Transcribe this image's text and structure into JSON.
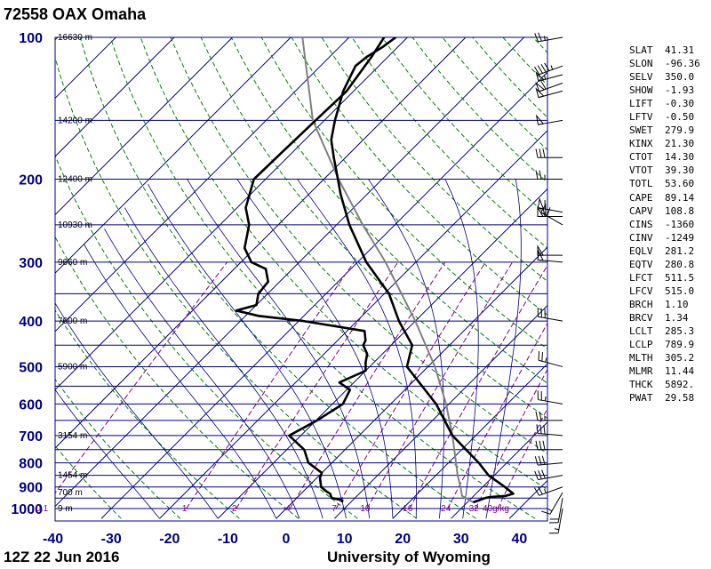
{
  "title": "72558 OAX Omaha",
  "footer": {
    "time": "12Z 22 Jun 2016",
    "source": "University of Wyoming"
  },
  "colors": {
    "isobar": "#000080",
    "isotherm": "#000080",
    "dry_adiabat": "#008000",
    "moist_adiabat": "#000080",
    "mixing_ratio": "#800080",
    "profile": "#000000",
    "parcel": "#808080"
  },
  "chart_data": {
    "type": "skew-t",
    "pressure_levels": [
      {
        "p": 100,
        "label": "100"
      },
      {
        "p": 150,
        "label": ""
      },
      {
        "p": 200,
        "label": "200"
      },
      {
        "p": 250,
        "label": ""
      },
      {
        "p": 300,
        "label": "300"
      },
      {
        "p": 350,
        "label": ""
      },
      {
        "p": 400,
        "label": "400"
      },
      {
        "p": 450,
        "label": ""
      },
      {
        "p": 500,
        "label": "500"
      },
      {
        "p": 550,
        "label": ""
      },
      {
        "p": 600,
        "label": "600"
      },
      {
        "p": 650,
        "label": ""
      },
      {
        "p": 700,
        "label": "700"
      },
      {
        "p": 750,
        "label": ""
      },
      {
        "p": 800,
        "label": "800"
      },
      {
        "p": 850,
        "label": ""
      },
      {
        "p": 900,
        "label": "900"
      },
      {
        "p": 950,
        "label": ""
      },
      {
        "p": 1000,
        "label": "1000"
      }
    ],
    "xlim": [
      -40,
      45
    ],
    "plim": [
      100,
      1000
    ],
    "temperature_ticks": [
      -40,
      -30,
      -20,
      -10,
      0,
      10,
      20,
      30,
      40
    ],
    "temperature_tick_labels": [
      "-40",
      "-30",
      "-20",
      "-10",
      "0",
      "10",
      "20",
      "30",
      "40"
    ],
    "heights": [
      {
        "p": 100,
        "label": "16630 m"
      },
      {
        "p": 150,
        "label": "14200 m"
      },
      {
        "p": 200,
        "label": "12400 m"
      },
      {
        "p": 250,
        "label": "10930 m"
      },
      {
        "p": 300,
        "label": "9660 m"
      },
      {
        "p": 400,
        "label": "7600 m"
      },
      {
        "p": 500,
        "label": "5900 m"
      },
      {
        "p": 700,
        "label": "3154 m"
      },
      {
        "p": 850,
        "label": "1454 m"
      },
      {
        "p": 925,
        "label": "700 m"
      },
      {
        "p": 1000,
        "label": "9 m"
      }
    ],
    "mixing_ratio_labels": [
      {
        "w": 0.1,
        "label": "0.1"
      },
      {
        "w": 1,
        "label": "1"
      },
      {
        "w": 2,
        "label": "2"
      },
      {
        "w": 4,
        "label": "4"
      },
      {
        "w": 7,
        "label": "7"
      },
      {
        "w": 10,
        "label": "10"
      },
      {
        "w": 16,
        "label": "16"
      },
      {
        "w": 24,
        "label": "24"
      },
      {
        "w": 32,
        "label": "32"
      },
      {
        "w": 40,
        "label": "40g/kg"
      }
    ],
    "temperature_profile": [
      [
        970,
        31
      ],
      [
        960,
        31.7
      ],
      [
        950,
        32.3
      ],
      [
        945,
        33
      ],
      [
        940,
        35.5
      ],
      [
        930,
        36.4
      ],
      [
        900,
        33.8
      ],
      [
        850,
        29
      ],
      [
        800,
        25.2
      ],
      [
        700,
        16
      ],
      [
        600,
        7.8
      ],
      [
        500,
        -3.6
      ],
      [
        450,
        -6.4
      ],
      [
        400,
        -12.8
      ],
      [
        350,
        -19.2
      ],
      [
        300,
        -28.5
      ],
      [
        250,
        -37.8
      ],
      [
        215,
        -44.6
      ],
      [
        200,
        -47.6
      ],
      [
        180,
        -52
      ],
      [
        165,
        -55.5
      ],
      [
        150,
        -58.2
      ],
      [
        130,
        -61.8
      ],
      [
        115,
        -64
      ],
      [
        110,
        -63.6
      ],
      [
        105,
        -62.6
      ],
      [
        100,
        -62
      ]
    ],
    "dewpoint_profile": [
      [
        970,
        8.5
      ],
      [
        960,
        8.2
      ],
      [
        950,
        6
      ],
      [
        940,
        5.5
      ],
      [
        930,
        5
      ],
      [
        920,
        4
      ],
      [
        900,
        2.3
      ],
      [
        860,
        0.5
      ],
      [
        840,
        0
      ],
      [
        800,
        -4
      ],
      [
        750,
        -7
      ],
      [
        700,
        -12
      ],
      [
        650,
        -9.8
      ],
      [
        600,
        -8.2
      ],
      [
        560,
        -9.4
      ],
      [
        540,
        -12.5
      ],
      [
        510,
        -10
      ],
      [
        490,
        -11.4
      ],
      [
        470,
        -12.6
      ],
      [
        450,
        -14.8
      ],
      [
        440,
        -15.2
      ],
      [
        420,
        -17
      ],
      [
        400,
        -29.2
      ],
      [
        390,
        -37.8
      ],
      [
        380,
        -42.5
      ],
      [
        370,
        -40
      ],
      [
        350,
        -41.6
      ],
      [
        330,
        -42
      ],
      [
        310,
        -44.6
      ],
      [
        300,
        -48.2
      ],
      [
        280,
        -51.8
      ],
      [
        250,
        -55
      ],
      [
        230,
        -58.5
      ],
      [
        200,
        -62
      ],
      [
        175,
        -61.8
      ],
      [
        150,
        -61.5
      ],
      [
        130,
        -61.2
      ],
      [
        110,
        -62.8
      ],
      [
        100,
        -64
      ]
    ],
    "parcel_profile": [
      [
        970,
        31
      ],
      [
        940,
        28
      ],
      [
        900,
        26.2
      ],
      [
        850,
        23.7
      ],
      [
        800,
        21.3
      ],
      [
        700,
        16
      ],
      [
        600,
        9.5
      ],
      [
        500,
        1.2
      ],
      [
        400,
        -10
      ],
      [
        300,
        -25.2
      ],
      [
        250,
        -35.5
      ],
      [
        200,
        -47.5
      ],
      [
        150,
        -62
      ],
      [
        100,
        -78
      ]
    ],
    "wind_barbs": [
      {
        "p": 100,
        "dir": 260,
        "spd": 25
      },
      {
        "p": 115,
        "dir": 250,
        "spd": 45
      },
      {
        "p": 120,
        "dir": 255,
        "spd": 55
      },
      {
        "p": 125,
        "dir": 250,
        "spd": 60
      },
      {
        "p": 130,
        "dir": 255,
        "spd": 50
      },
      {
        "p": 150,
        "dir": 260,
        "spd": 50
      },
      {
        "p": 180,
        "dir": 270,
        "spd": 30
      },
      {
        "p": 200,
        "dir": 270,
        "spd": 25
      },
      {
        "p": 235,
        "dir": 280,
        "spd": 60
      },
      {
        "p": 240,
        "dir": 270,
        "spd": 60
      },
      {
        "p": 250,
        "dir": 300,
        "spd": 60
      },
      {
        "p": 290,
        "dir": 270,
        "spd": 50
      },
      {
        "p": 300,
        "dir": 275,
        "spd": 50
      },
      {
        "p": 400,
        "dir": 280,
        "spd": 30
      },
      {
        "p": 500,
        "dir": 285,
        "spd": 25
      },
      {
        "p": 600,
        "dir": 280,
        "spd": 25
      },
      {
        "p": 650,
        "dir": 270,
        "spd": 25
      },
      {
        "p": 700,
        "dir": 275,
        "spd": 30
      },
      {
        "p": 750,
        "dir": 270,
        "spd": 30
      },
      {
        "p": 800,
        "dir": 265,
        "spd": 30
      },
      {
        "p": 850,
        "dir": 260,
        "spd": 30
      },
      {
        "p": 900,
        "dir": 250,
        "spd": 25
      },
      {
        "p": 925,
        "dir": 210,
        "spd": 15
      },
      {
        "p": 950,
        "dir": 190,
        "spd": 20
      },
      {
        "p": 1000,
        "dir": 190,
        "spd": 15
      }
    ]
  },
  "indices": [
    {
      "label": "SLAT",
      "value": "41.31"
    },
    {
      "label": "SLON",
      "value": "-96.36"
    },
    {
      "label": "SELV",
      "value": "350.0"
    },
    {
      "label": "SHOW",
      "value": "-1.93"
    },
    {
      "label": "LIFT",
      "value": "-0.30"
    },
    {
      "label": "LFTV",
      "value": "-0.50"
    },
    {
      "label": "SWET",
      "value": "279.9"
    },
    {
      "label": "KINX",
      "value": "21.30"
    },
    {
      "label": "CTOT",
      "value": "14.30"
    },
    {
      "label": "VTOT",
      "value": "39.30"
    },
    {
      "label": "TOTL",
      "value": "53.60"
    },
    {
      "label": "CAPE",
      "value": "89.14"
    },
    {
      "label": "CAPV",
      "value": "108.8"
    },
    {
      "label": "CINS",
      "value": "-1360"
    },
    {
      "label": "CINV",
      "value": "-1249"
    },
    {
      "label": "EQLV",
      "value": "281.2"
    },
    {
      "label": "EQTV",
      "value": "280.8"
    },
    {
      "label": "LFCT",
      "value": "511.5"
    },
    {
      "label": "LFCV",
      "value": "515.0"
    },
    {
      "label": "BRCH",
      "value": "1.10"
    },
    {
      "label": "BRCV",
      "value": "1.34"
    },
    {
      "label": "LCLT",
      "value": "285.3"
    },
    {
      "label": "LCLP",
      "value": "789.9"
    },
    {
      "label": "MLTH",
      "value": "305.2"
    },
    {
      "label": "MLMR",
      "value": "11.44"
    },
    {
      "label": "THCK",
      "value": "5892."
    },
    {
      "label": "PWAT",
      "value": "29.58"
    }
  ]
}
